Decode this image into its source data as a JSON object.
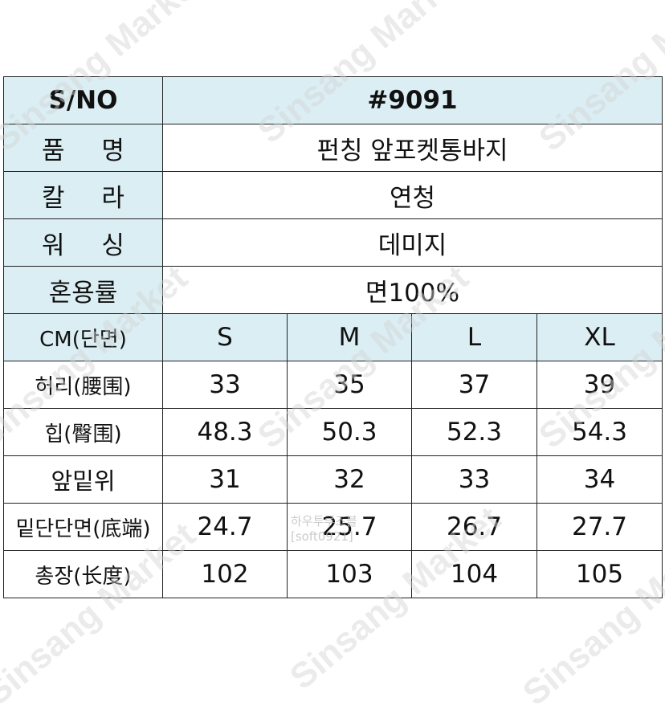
{
  "info": {
    "sno_label": "S/NO",
    "sno_value": "#9091",
    "name_label": "품 명",
    "name_value": "펀칭 앞포켓통바지",
    "color_label": "칼 라",
    "color_value": "연청",
    "wash_label": "워 싱",
    "wash_value": "데미지",
    "fabric_label": "혼용률",
    "fabric_value": "면100%"
  },
  "size_table": {
    "header_label": "CM(단면)",
    "sizes": [
      "S",
      "M",
      "L",
      "XL"
    ],
    "rows": [
      {
        "label": "허리(腰围)",
        "values": [
          "33",
          "35",
          "37",
          "39"
        ]
      },
      {
        "label": "힙(臀围)",
        "values": [
          "48.3",
          "50.3",
          "52.3",
          "54.3"
        ]
      },
      {
        "label": "앞밑위",
        "values": [
          "31",
          "32",
          "33",
          "34"
        ]
      },
      {
        "label": "밑단단면(底端)",
        "values": [
          "24.7",
          "25.7",
          "26.7",
          "27.7"
        ]
      },
      {
        "label": "총장(长度)",
        "values": [
          "102",
          "103",
          "104",
          "105"
        ]
      }
    ]
  },
  "watermark": {
    "text": "Sinsang Market",
    "stamp_line1": "하우투루즈블",
    "stamp_line2": "[soft0921]"
  },
  "colors": {
    "label_bg": "#dbeef4",
    "border": "#222222"
  }
}
